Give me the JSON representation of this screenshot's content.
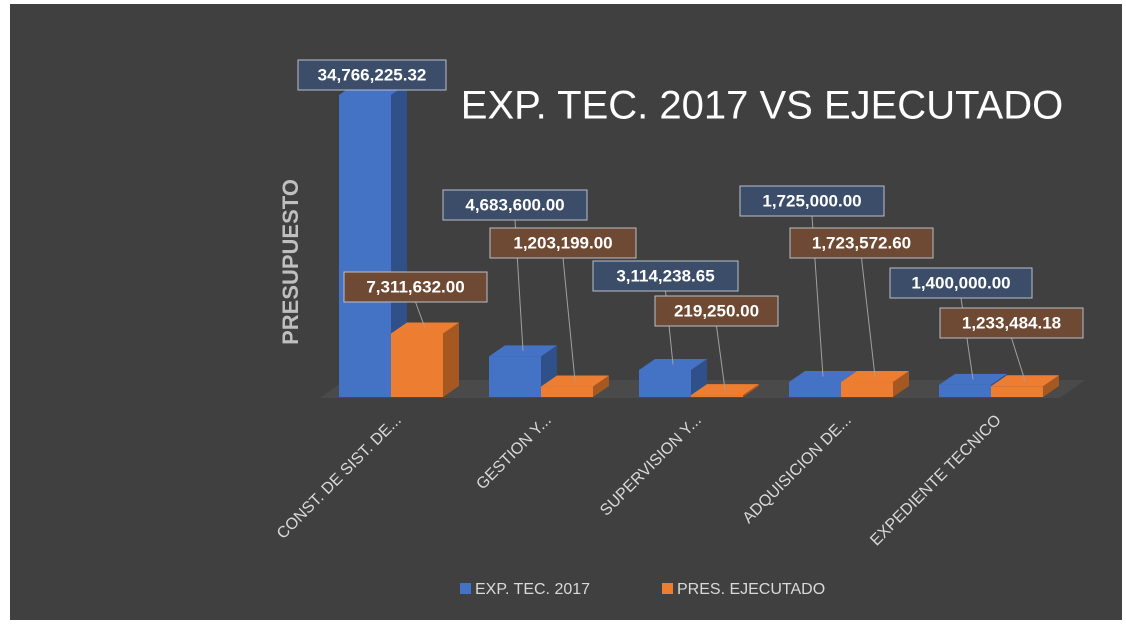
{
  "chart_data": {
    "type": "bar3d",
    "title": "EXP. TEC. 2017 VS EJECUTADO",
    "y_label": "PRESUPUESTO",
    "categories": [
      "CONST. DE SIST. DE...",
      "GESTION Y...",
      "SUPERVISION Y...",
      "ADQUISICION DE...",
      "EXPEDIENTE TECNICO"
    ],
    "series": [
      {
        "name": "EXP. TEC. 2017",
        "color": "#4472c4",
        "values": [
          34766225.32,
          4683600,
          3114238.65,
          1725000,
          1400000
        ],
        "value_labels": [
          "34,766,225.32",
          "4,683,600.00",
          "3,114,238.65",
          "1,725,000.00",
          "1,400,000.00"
        ]
      },
      {
        "name": "PRES. EJECUTADO",
        "color": "#ed7d31",
        "values": [
          7311632,
          1203199,
          219250,
          1723572.6,
          1233484.18
        ],
        "value_labels": [
          "7,311,632.00",
          "1,203,199.00",
          "219,250.00",
          "1,723,572.60",
          "1,233,484.18"
        ]
      }
    ],
    "legend": "bottom"
  }
}
